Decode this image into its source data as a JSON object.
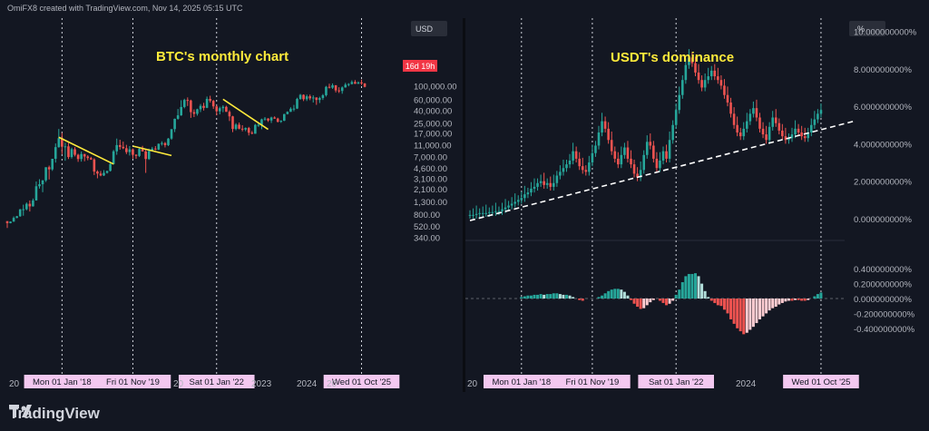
{
  "header": {
    "text": "OmiFX8 created with TradingView.com, Nov 14, 2025 05:15 UTC"
  },
  "brand": {
    "name": "TradingView"
  },
  "colors": {
    "bg": "#131722",
    "up": "#26a69a",
    "down": "#ef5350",
    "yellow": "#ffeb3b",
    "vline_label_bg": "#f3c8f0",
    "vline_label_text": "#131722",
    "price_tag": "#f23645"
  },
  "chart_data": [
    {
      "type": "candlestick",
      "title": "BTC's monthly chart",
      "currency_label": "USD",
      "scale": "log",
      "y_ticks": [
        "100,000.00",
        "60,000.00",
        "40,000.00",
        "25,000.00",
        "17,000.00",
        "11,000.00",
        "7,000.00",
        "4,600.00",
        "3,100.00",
        "2,100.00",
        "1,300.00",
        "800.00",
        "520.00",
        "340.00"
      ],
      "current_tag": "16d 19h",
      "x_ticks": [
        "20",
        "20",
        "2023",
        "2024",
        "20"
      ],
      "vline_labels": [
        "Mon 01 Jan '18",
        "Fri 01 Nov '19",
        "Sat 01 Jan '22",
        "Wed 01 Oct '25"
      ],
      "annotations": [
        "downtrend line 2018",
        "downtrend line 2019",
        "downtrend line 2022"
      ],
      "ohlc_monthly_from_2016_08": [
        [
          620,
          620,
          480,
          575
        ],
        [
          575,
          615,
          570,
          609
        ],
        [
          609,
          740,
          605,
          700
        ],
        [
          700,
          755,
          690,
          745
        ],
        [
          745,
          980,
          730,
          965
        ],
        [
          965,
          1150,
          760,
          970
        ],
        [
          970,
          1250,
          930,
          1190
        ],
        [
          1190,
          1350,
          890,
          1080
        ],
        [
          1080,
          1450,
          1070,
          1350
        ],
        [
          1350,
          2750,
          1340,
          2300
        ],
        [
          2300,
          3000,
          2100,
          2480
        ],
        [
          2480,
          2900,
          1840,
          2870
        ],
        [
          2870,
          4700,
          2700,
          4700
        ],
        [
          4700,
          5000,
          2970,
          4340
        ],
        [
          4340,
          6450,
          4100,
          6450
        ],
        [
          6450,
          11500,
          5600,
          10000
        ],
        [
          10000,
          19800,
          9800,
          14000
        ],
        [
          14000,
          17100,
          7700,
          10200
        ],
        [
          10200,
          11800,
          6000,
          10300
        ],
        [
          10300,
          11700,
          6400,
          6900
        ],
        [
          6900,
          9800,
          6500,
          9250
        ],
        [
          9250,
          10000,
          7050,
          7500
        ],
        [
          7500,
          7800,
          5750,
          6400
        ],
        [
          6400,
          8500,
          5800,
          7730
        ],
        [
          7730,
          7760,
          5880,
          7030
        ],
        [
          7030,
          7400,
          6100,
          6630
        ],
        [
          6630,
          6950,
          6200,
          6300
        ],
        [
          6300,
          6580,
          3500,
          4000
        ],
        [
          4000,
          4200,
          3100,
          3700
        ],
        [
          3700,
          4080,
          3350,
          3450
        ],
        [
          3450,
          4210,
          3380,
          3800
        ],
        [
          3800,
          4100,
          3700,
          4100
        ],
        [
          4100,
          5600,
          4000,
          5300
        ],
        [
          5300,
          9000,
          5200,
          8550
        ],
        [
          8550,
          13800,
          7500,
          10800
        ],
        [
          10800,
          13200,
          9100,
          10100
        ],
        [
          10100,
          12300,
          9300,
          9600
        ],
        [
          9600,
          10900,
          7700,
          8300
        ],
        [
          8300,
          10400,
          7300,
          9200
        ],
        [
          9200,
          9500,
          6500,
          7500
        ],
        [
          7500,
          7650,
          6450,
          7200
        ],
        [
          7200,
          9600,
          6900,
          9350
        ],
        [
          9350,
          10500,
          8500,
          8500
        ],
        [
          8500,
          9200,
          3800,
          6400
        ],
        [
          6400,
          9450,
          6200,
          8650
        ],
        [
          8650,
          10100,
          8600,
          9450
        ],
        [
          9450,
          10400,
          8900,
          9150
        ],
        [
          9150,
          11450,
          8900,
          11350
        ],
        [
          11350,
          12450,
          10600,
          11650
        ],
        [
          11650,
          12100,
          9900,
          10800
        ],
        [
          10800,
          14100,
          10400,
          13800
        ],
        [
          13800,
          19500,
          13200,
          19700
        ],
        [
          19700,
          29300,
          17600,
          29000
        ],
        [
          29000,
          41900,
          28100,
          33100
        ],
        [
          33100,
          58300,
          32300,
          45200
        ],
        [
          45200,
          61700,
          43000,
          58900
        ],
        [
          58900,
          64800,
          47000,
          57700
        ],
        [
          57700,
          59500,
          30000,
          37300
        ],
        [
          37300,
          41300,
          31000,
          35000
        ],
        [
          35000,
          42400,
          32700,
          41500
        ],
        [
          41500,
          50500,
          37400,
          47100
        ],
        [
          47100,
          52900,
          39600,
          43800
        ],
        [
          43800,
          66900,
          43300,
          61300
        ],
        [
          61300,
          69000,
          53300,
          57000
        ],
        [
          57000,
          59000,
          42000,
          46200
        ],
        [
          46200,
          47900,
          33000,
          38500
        ],
        [
          38500,
          45800,
          34300,
          43200
        ],
        [
          43200,
          48200,
          37200,
          45500
        ],
        [
          45500,
          47400,
          37700,
          37700
        ],
        [
          37700,
          40000,
          26700,
          31800
        ],
        [
          31800,
          32400,
          17600,
          19800
        ],
        [
          19800,
          24600,
          18800,
          23300
        ],
        [
          23300,
          25200,
          19500,
          20000
        ],
        [
          20000,
          22800,
          18100,
          19400
        ],
        [
          19400,
          21000,
          18200,
          20500
        ],
        [
          20500,
          21400,
          15500,
          17200
        ],
        [
          17200,
          18400,
          16300,
          16550
        ],
        [
          16550,
          23900,
          16500,
          23100
        ],
        [
          23100,
          25250,
          21400,
          23150
        ],
        [
          23150,
          29200,
          19600,
          28450
        ],
        [
          28450,
          31000,
          26900,
          29250
        ],
        [
          29250,
          29800,
          25800,
          27200
        ],
        [
          27200,
          31400,
          24800,
          30450
        ],
        [
          30450,
          31800,
          28900,
          29250
        ],
        [
          29250,
          30200,
          25300,
          25950
        ],
        [
          25950,
          27500,
          24900,
          26950
        ],
        [
          26950,
          35000,
          26600,
          34650
        ],
        [
          34650,
          38400,
          34100,
          37700
        ],
        [
          37700,
          44700,
          37600,
          42300
        ],
        [
          42300,
          48900,
          38500,
          42600
        ],
        [
          42600,
          63900,
          41900,
          61200
        ],
        [
          61200,
          73800,
          59200,
          71300
        ],
        [
          71300,
          72700,
          56500,
          60600
        ],
        [
          60600,
          71900,
          56600,
          67500
        ],
        [
          67500,
          72000,
          58400,
          62700
        ],
        [
          62700,
          70000,
          53500,
          64600
        ],
        [
          64600,
          65100,
          49000,
          58900
        ],
        [
          58900,
          66500,
          52500,
          63300
        ],
        [
          63300,
          73600,
          58900,
          70300
        ],
        [
          70300,
          99800,
          66800,
          96400
        ],
        [
          96400,
          108300,
          90600,
          93400
        ],
        [
          93400,
          109600,
          89200,
          102400
        ],
        [
          102400,
          102700,
          78200,
          84300
        ],
        [
          84300,
          95000,
          76600,
          82500
        ],
        [
          82500,
          97900,
          74400,
          94200
        ],
        [
          94200,
          111900,
          93400,
          104600
        ],
        [
          104600,
          110500,
          98200,
          107100
        ],
        [
          107100,
          123200,
          105200,
          115700
        ],
        [
          115700,
          124400,
          107300,
          108200
        ],
        [
          108200,
          117900,
          107300,
          114000
        ],
        [
          114000,
          126200,
          103500,
          109500
        ],
        [
          109500,
          111200,
          94500,
          96500
        ]
      ]
    },
    {
      "type": "candlestick_with_histogram",
      "title": "USDT's dominance",
      "unit_label": "%",
      "y_ticks": [
        "10.000000000%",
        "8.000000000%",
        "6.000000000%",
        "4.000000000%",
        "2.000000000%",
        "0.000000000%"
      ],
      "histogram_ticks": [
        "0.400000000%",
        "0.200000000%",
        "0.000000000%",
        "-0.200000000%",
        "-0.400000000%"
      ],
      "x_ticks": [
        "20",
        "2024"
      ],
      "vline_labels": [
        "Mon 01 Jan '18",
        "Fri 01 Nov '19",
        "Sat 01 Jan '22",
        "Wed 01 Oct '25"
      ],
      "annotations": [
        "rising support line"
      ]
    }
  ]
}
